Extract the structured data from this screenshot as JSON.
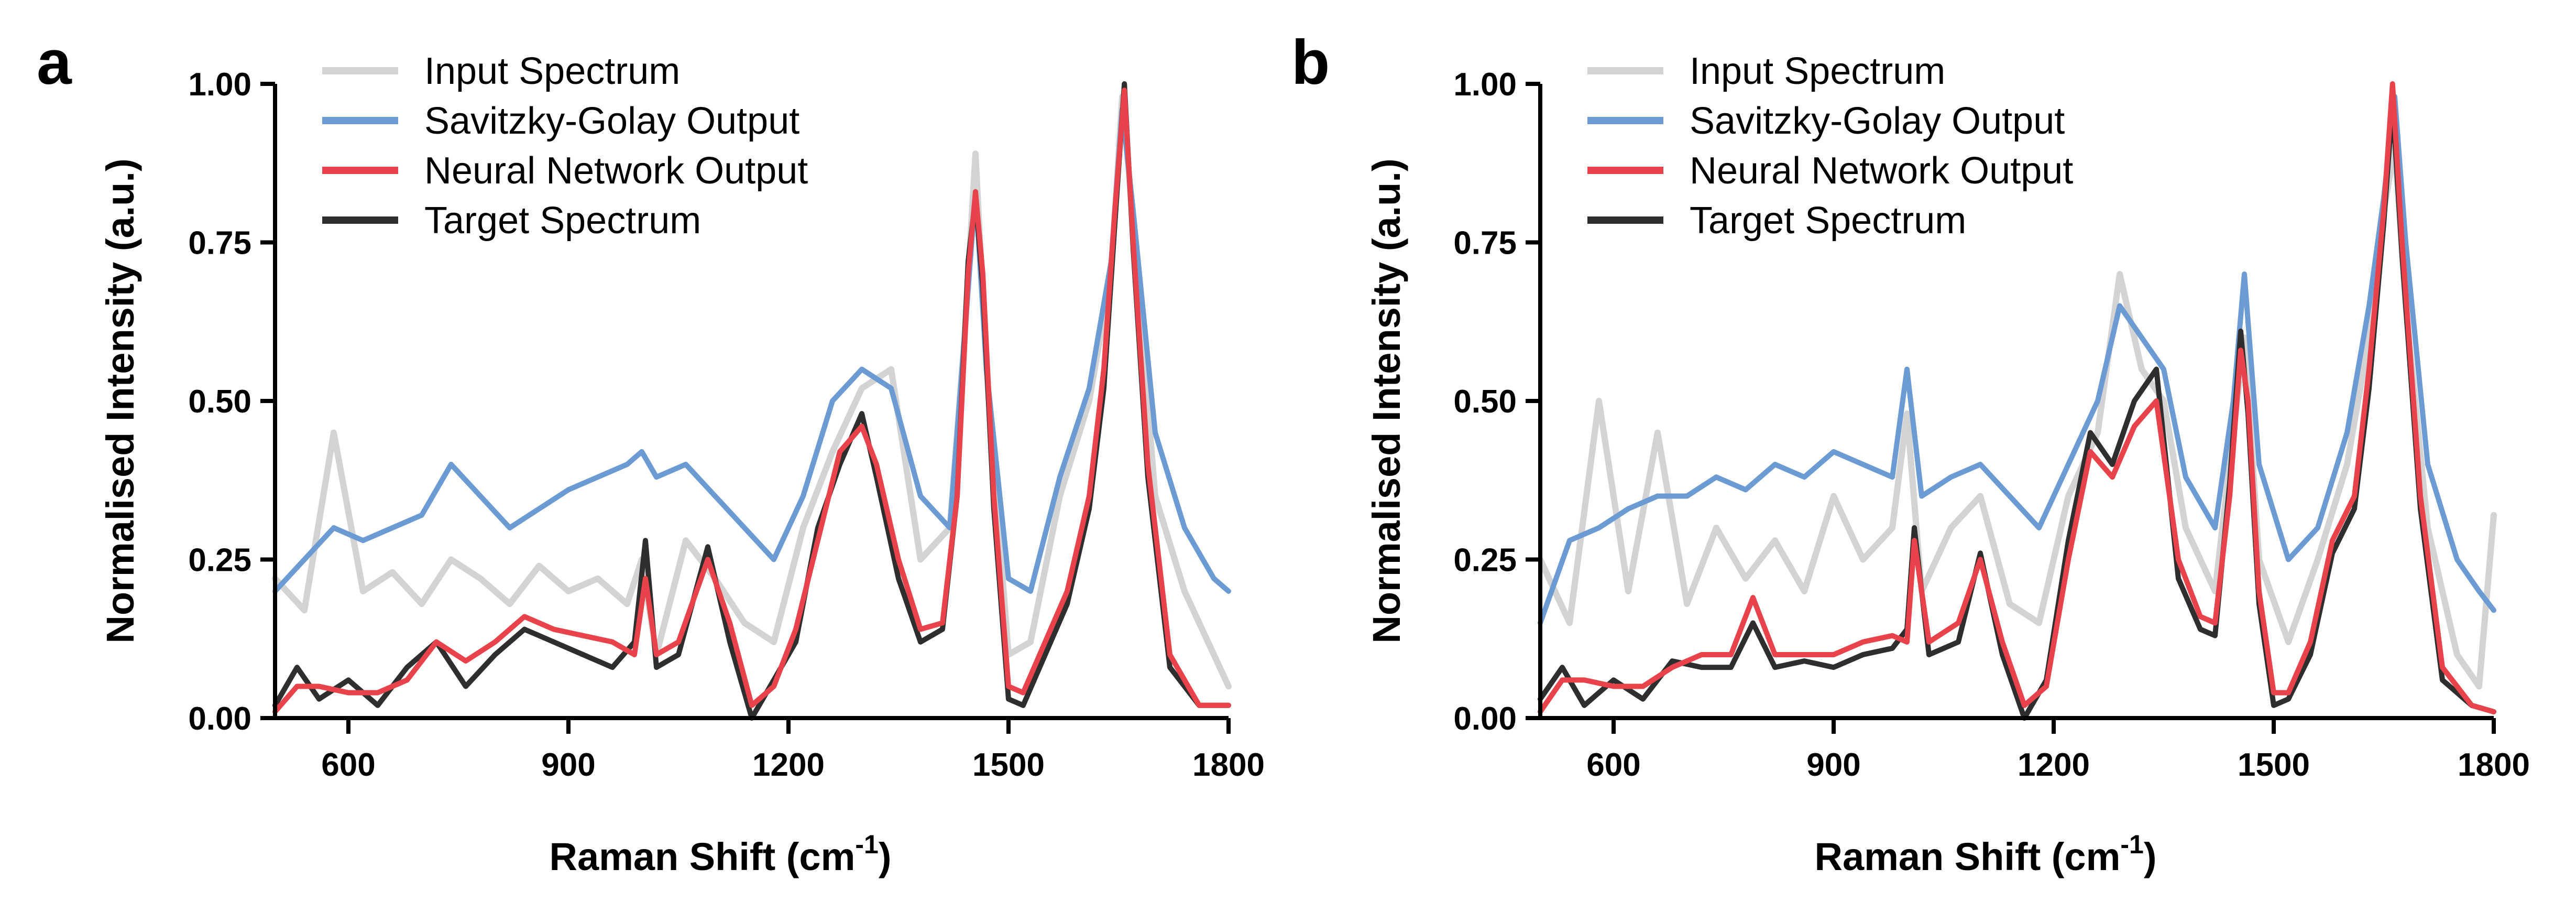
{
  "chart_data": [
    {
      "type": "line",
      "panel_label": "a",
      "xlabel_main": "Raman Shift (cm",
      "xlabel_sup": "-1",
      "xlabel_end": ")",
      "ylabel": "Normalised Intensity (a.u.)",
      "xlim": [
        500,
        1800
      ],
      "ylim": [
        0,
        1
      ],
      "xticks": [
        600,
        900,
        1200,
        1500,
        1800
      ],
      "xtick_labels": [
        "600",
        "900",
        "1200",
        "1500",
        "1800"
      ],
      "yticks": [
        0,
        0.25,
        0.5,
        0.75,
        1.0
      ],
      "ytick_labels": [
        "0.00",
        "0.25",
        "0.50",
        "0.75",
        "1.00"
      ],
      "legend_position": "top-left",
      "series": [
        {
          "name": "Input Spectrum",
          "color": "#d3d3d3",
          "x": [
            500,
            540,
            580,
            620,
            660,
            700,
            740,
            780,
            820,
            860,
            900,
            940,
            980,
            1000,
            1020,
            1060,
            1100,
            1140,
            1180,
            1220,
            1260,
            1300,
            1340,
            1380,
            1420,
            1440,
            1455,
            1470,
            1500,
            1530,
            1570,
            1610,
            1640,
            1655,
            1670,
            1700,
            1740,
            1780,
            1800
          ],
          "y": [
            0.22,
            0.17,
            0.45,
            0.2,
            0.23,
            0.18,
            0.25,
            0.22,
            0.18,
            0.24,
            0.2,
            0.22,
            0.18,
            0.25,
            0.1,
            0.28,
            0.22,
            0.15,
            0.12,
            0.3,
            0.42,
            0.52,
            0.55,
            0.25,
            0.3,
            0.6,
            0.89,
            0.55,
            0.1,
            0.12,
            0.35,
            0.5,
            0.7,
            0.98,
            0.78,
            0.35,
            0.2,
            0.1,
            0.05
          ]
        },
        {
          "name": "Savitzky-Golay Output",
          "color": "#6b9bd2",
          "x": [
            500,
            540,
            580,
            620,
            660,
            700,
            740,
            780,
            820,
            860,
            900,
            940,
            980,
            1000,
            1020,
            1060,
            1100,
            1140,
            1180,
            1220,
            1260,
            1300,
            1340,
            1380,
            1420,
            1440,
            1455,
            1470,
            1500,
            1530,
            1570,
            1610,
            1640,
            1655,
            1670,
            1700,
            1740,
            1780,
            1800
          ],
          "y": [
            0.2,
            0.25,
            0.3,
            0.28,
            0.3,
            0.32,
            0.4,
            0.35,
            0.3,
            0.33,
            0.36,
            0.38,
            0.4,
            0.42,
            0.38,
            0.4,
            0.35,
            0.3,
            0.25,
            0.35,
            0.5,
            0.55,
            0.52,
            0.35,
            0.3,
            0.6,
            0.83,
            0.55,
            0.22,
            0.2,
            0.38,
            0.52,
            0.72,
            0.96,
            0.8,
            0.45,
            0.3,
            0.22,
            0.2
          ]
        },
        {
          "name": "Neural Network Output",
          "color": "#e8434a",
          "x": [
            500,
            530,
            560,
            600,
            640,
            680,
            720,
            760,
            800,
            840,
            880,
            920,
            960,
            990,
            1005,
            1020,
            1050,
            1090,
            1120,
            1150,
            1180,
            1210,
            1240,
            1270,
            1300,
            1320,
            1350,
            1380,
            1410,
            1430,
            1445,
            1455,
            1465,
            1480,
            1500,
            1520,
            1550,
            1580,
            1610,
            1630,
            1645,
            1658,
            1670,
            1690,
            1720,
            1760,
            1800
          ],
          "y": [
            0.01,
            0.05,
            0.05,
            0.04,
            0.04,
            0.06,
            0.12,
            0.09,
            0.12,
            0.16,
            0.14,
            0.13,
            0.12,
            0.1,
            0.22,
            0.1,
            0.12,
            0.25,
            0.15,
            0.02,
            0.05,
            0.14,
            0.28,
            0.42,
            0.46,
            0.4,
            0.25,
            0.14,
            0.15,
            0.35,
            0.7,
            0.83,
            0.7,
            0.35,
            0.05,
            0.04,
            0.12,
            0.2,
            0.35,
            0.55,
            0.8,
            0.99,
            0.75,
            0.4,
            0.1,
            0.02,
            0.02
          ]
        },
        {
          "name": "Target Spectrum",
          "color": "#2e2e2e",
          "x": [
            500,
            530,
            560,
            600,
            640,
            680,
            720,
            760,
            800,
            840,
            880,
            920,
            960,
            990,
            1005,
            1020,
            1050,
            1090,
            1120,
            1150,
            1180,
            1210,
            1240,
            1270,
            1300,
            1320,
            1350,
            1380,
            1410,
            1430,
            1445,
            1455,
            1465,
            1480,
            1500,
            1520,
            1550,
            1580,
            1610,
            1630,
            1645,
            1658,
            1670,
            1690,
            1720,
            1760,
            1800
          ],
          "y": [
            0.02,
            0.08,
            0.03,
            0.06,
            0.02,
            0.08,
            0.12,
            0.05,
            0.1,
            0.14,
            0.12,
            0.1,
            0.08,
            0.12,
            0.28,
            0.08,
            0.1,
            0.27,
            0.12,
            0.0,
            0.06,
            0.12,
            0.3,
            0.4,
            0.48,
            0.38,
            0.22,
            0.12,
            0.14,
            0.35,
            0.72,
            0.82,
            0.68,
            0.33,
            0.03,
            0.02,
            0.1,
            0.18,
            0.33,
            0.52,
            0.78,
            1.0,
            0.74,
            0.38,
            0.08,
            0.02,
            0.02
          ]
        }
      ]
    },
    {
      "type": "line",
      "panel_label": "b",
      "xlabel_main": "Raman Shift (cm",
      "xlabel_sup": "-1",
      "xlabel_end": ")",
      "ylabel": "Normalised Intensity (a.u.)",
      "xlim": [
        500,
        1800
      ],
      "ylim": [
        0,
        1
      ],
      "xticks": [
        600,
        900,
        1200,
        1500,
        1800
      ],
      "xtick_labels": [
        "600",
        "900",
        "1200",
        "1500",
        "1800"
      ],
      "yticks": [
        0,
        0.25,
        0.5,
        0.75,
        1.0
      ],
      "ytick_labels": [
        "0.00",
        "0.25",
        "0.50",
        "0.75",
        "1.00"
      ],
      "legend_position": "top-left",
      "series": [
        {
          "name": "Input Spectrum",
          "color": "#d3d3d3",
          "x": [
            500,
            540,
            580,
            620,
            660,
            700,
            740,
            780,
            820,
            860,
            900,
            940,
            980,
            1000,
            1020,
            1060,
            1100,
            1140,
            1180,
            1220,
            1260,
            1290,
            1320,
            1350,
            1380,
            1420,
            1445,
            1460,
            1480,
            1520,
            1560,
            1600,
            1630,
            1650,
            1665,
            1680,
            1710,
            1750,
            1780,
            1800
          ],
          "y": [
            0.25,
            0.15,
            0.5,
            0.2,
            0.45,
            0.18,
            0.3,
            0.22,
            0.28,
            0.2,
            0.35,
            0.25,
            0.3,
            0.48,
            0.2,
            0.3,
            0.35,
            0.18,
            0.15,
            0.35,
            0.45,
            0.7,
            0.55,
            0.5,
            0.3,
            0.2,
            0.45,
            0.6,
            0.25,
            0.12,
            0.25,
            0.4,
            0.6,
            0.8,
            0.9,
            0.65,
            0.3,
            0.1,
            0.05,
            0.32
          ]
        },
        {
          "name": "Savitzky-Golay Output",
          "color": "#6b9bd2",
          "x": [
            500,
            540,
            580,
            620,
            660,
            700,
            740,
            780,
            820,
            860,
            900,
            940,
            980,
            1000,
            1020,
            1060,
            1100,
            1140,
            1180,
            1220,
            1260,
            1290,
            1320,
            1350,
            1380,
            1420,
            1445,
            1460,
            1480,
            1520,
            1560,
            1600,
            1630,
            1650,
            1665,
            1680,
            1710,
            1750,
            1780,
            1800
          ],
          "y": [
            0.15,
            0.28,
            0.3,
            0.33,
            0.35,
            0.35,
            0.38,
            0.36,
            0.4,
            0.38,
            0.42,
            0.4,
            0.38,
            0.55,
            0.35,
            0.38,
            0.4,
            0.35,
            0.3,
            0.4,
            0.5,
            0.65,
            0.6,
            0.55,
            0.38,
            0.3,
            0.5,
            0.7,
            0.4,
            0.25,
            0.3,
            0.45,
            0.65,
            0.82,
            0.98,
            0.75,
            0.4,
            0.25,
            0.2,
            0.17
          ]
        },
        {
          "name": "Neural Network Output",
          "color": "#e8434a",
          "x": [
            500,
            530,
            560,
            600,
            640,
            680,
            720,
            760,
            790,
            820,
            860,
            900,
            940,
            980,
            1000,
            1010,
            1030,
            1070,
            1100,
            1130,
            1160,
            1190,
            1220,
            1250,
            1280,
            1310,
            1340,
            1370,
            1400,
            1420,
            1440,
            1455,
            1465,
            1480,
            1500,
            1520,
            1550,
            1580,
            1610,
            1630,
            1650,
            1662,
            1675,
            1700,
            1730,
            1770,
            1800
          ],
          "y": [
            0.01,
            0.06,
            0.06,
            0.05,
            0.05,
            0.08,
            0.1,
            0.1,
            0.19,
            0.1,
            0.1,
            0.1,
            0.12,
            0.13,
            0.12,
            0.28,
            0.12,
            0.15,
            0.25,
            0.12,
            0.02,
            0.05,
            0.25,
            0.42,
            0.38,
            0.46,
            0.5,
            0.25,
            0.16,
            0.15,
            0.35,
            0.58,
            0.5,
            0.2,
            0.04,
            0.04,
            0.12,
            0.28,
            0.35,
            0.55,
            0.8,
            1.0,
            0.75,
            0.35,
            0.08,
            0.02,
            0.01
          ]
        },
        {
          "name": "Target Spectrum",
          "color": "#2e2e2e",
          "x": [
            500,
            530,
            560,
            600,
            640,
            680,
            720,
            760,
            790,
            820,
            860,
            900,
            940,
            980,
            1000,
            1010,
            1030,
            1070,
            1100,
            1130,
            1160,
            1190,
            1220,
            1250,
            1280,
            1310,
            1340,
            1370,
            1400,
            1420,
            1440,
            1455,
            1465,
            1480,
            1500,
            1520,
            1550,
            1580,
            1610,
            1630,
            1650,
            1662,
            1675,
            1700,
            1730,
            1770,
            1800
          ],
          "y": [
            0.03,
            0.08,
            0.02,
            0.06,
            0.03,
            0.09,
            0.08,
            0.08,
            0.15,
            0.08,
            0.09,
            0.08,
            0.1,
            0.11,
            0.14,
            0.3,
            0.1,
            0.12,
            0.26,
            0.1,
            0.0,
            0.06,
            0.28,
            0.45,
            0.4,
            0.5,
            0.55,
            0.22,
            0.14,
            0.13,
            0.37,
            0.61,
            0.48,
            0.18,
            0.02,
            0.03,
            0.1,
            0.26,
            0.33,
            0.52,
            0.78,
            0.97,
            0.73,
            0.33,
            0.06,
            0.02,
            0.01
          ]
        }
      ]
    }
  ]
}
